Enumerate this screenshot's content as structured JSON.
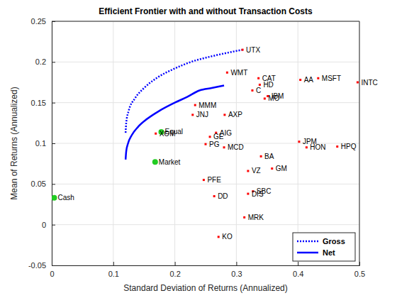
{
  "chart_data": {
    "type": "line",
    "title": "Efficient Frontier with and without Transaction Costs",
    "x_label": "Standard Deviation of Returns (Annualized)",
    "y_label": "Mean of Returns (Annualized)",
    "xlim": [
      0,
      0.5
    ],
    "xticks": [
      0,
      0.1,
      0.2,
      0.3,
      0.4,
      0.5
    ],
    "ylim": [
      -0.05,
      0.25
    ],
    "yticks": [
      -0.05,
      0,
      0.05,
      0.1,
      0.15,
      0.2,
      0.25
    ],
    "grid": true,
    "legend": "lower right",
    "series": [
      {
        "name": "Gross",
        "color": "#0000ff",
        "line_style": "dotted",
        "x": [
          0.12,
          0.121,
          0.125,
          0.135,
          0.15,
          0.17,
          0.2,
          0.23,
          0.26,
          0.29,
          0.31
        ],
        "values": [
          0.113,
          0.125,
          0.14,
          0.155,
          0.168,
          0.18,
          0.192,
          0.201,
          0.207,
          0.212,
          0.215
        ]
      },
      {
        "name": "Net",
        "color": "#0000ff",
        "line_style": "solid",
        "x": [
          0.12,
          0.121,
          0.124,
          0.13,
          0.14,
          0.155,
          0.175,
          0.2,
          0.22,
          0.24,
          0.26,
          0.28
        ],
        "values": [
          0.08,
          0.09,
          0.1,
          0.11,
          0.12,
          0.13,
          0.14,
          0.15,
          0.157,
          0.165,
          0.168,
          0.171
        ]
      }
    ],
    "points": [
      {
        "color": "#ff0000",
        "marker": "square",
        "labels": [
          "UTX",
          "WMT",
          "CAT",
          "HD",
          "C",
          "AA",
          "MSFT",
          "INTC",
          "IBM",
          "MO",
          "MMM",
          "JNJ",
          "AXP",
          "XOM",
          "AIG",
          "GE",
          "PG",
          "MCD",
          "JPM",
          "HON",
          "HPQ",
          "BA",
          "GM",
          "VZ",
          "PFE",
          "SBC",
          "DIS",
          "DD",
          "MRK",
          "KO"
        ],
        "x": [
          0.31,
          0.285,
          0.336,
          0.338,
          0.326,
          0.404,
          0.433,
          0.497,
          0.351,
          0.346,
          0.233,
          0.229,
          0.281,
          0.169,
          0.267,
          0.257,
          0.25,
          0.28,
          0.402,
          0.414,
          0.464,
          0.34,
          0.358,
          0.319,
          0.247,
          0.327,
          0.319,
          0.264,
          0.313,
          0.271
        ],
        "y": [
          0.215,
          0.187,
          0.18,
          0.172,
          0.165,
          0.178,
          0.18,
          0.175,
          0.158,
          0.155,
          0.147,
          0.135,
          0.135,
          0.112,
          0.113,
          0.108,
          0.099,
          0.095,
          0.102,
          0.095,
          0.096,
          0.084,
          0.069,
          0.066,
          0.055,
          0.041,
          0.038,
          0.035,
          0.009,
          -0.015
        ]
      },
      {
        "color": "#22cc22",
        "marker": "circle",
        "labels": [
          "Cash",
          "Market",
          "Equal"
        ],
        "x": [
          0.004,
          0.168,
          0.178
        ],
        "y": [
          0.033,
          0.077,
          0.114
        ]
      }
    ]
  }
}
